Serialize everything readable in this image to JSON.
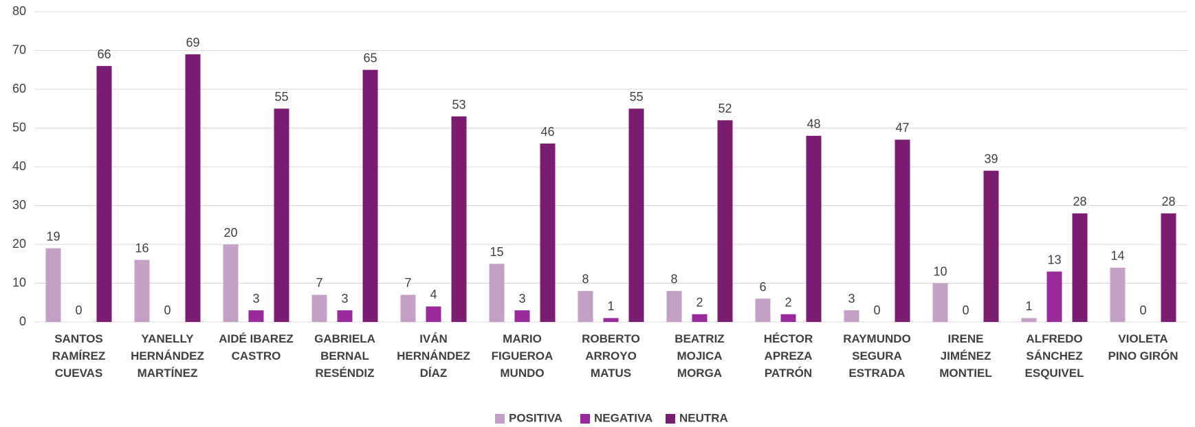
{
  "chart_data": {
    "type": "bar",
    "categories": [
      "SANTOS RAMÍREZ CUEVAS",
      "YANELLY HERNÁNDEZ MARTÍNEZ",
      "AIDÉ IBAREZ CASTRO",
      "GABRIELA BERNAL RESÉNDIZ",
      "IVÁN HERNÁNDEZ DÍAZ",
      "MARIO FIGUEROA MUNDO",
      "ROBERTO ARROYO MATUS",
      "BEATRIZ MOJICA MORGA",
      "HÉCTOR APREZA PATRÓN",
      "RAYMUNDO SEGURA ESTRADA",
      "IRENE JIMÉNEZ MONTIEL",
      "ALFREDO SÁNCHEZ ESQUIVEL",
      "VIOLETA PINO GIRÓN"
    ],
    "series": [
      {
        "name": "POSITIVA",
        "color": "#c4a0c6",
        "values": [
          19,
          16,
          20,
          7,
          7,
          15,
          8,
          8,
          6,
          3,
          10,
          1,
          14
        ]
      },
      {
        "name": "NEGATIVA",
        "color": "#9a2a9c",
        "values": [
          0,
          0,
          3,
          3,
          4,
          3,
          1,
          2,
          2,
          0,
          0,
          13,
          0
        ]
      },
      {
        "name": "NEUTRA",
        "color": "#7a1d72",
        "values": [
          66,
          69,
          55,
          65,
          53,
          46,
          55,
          52,
          48,
          47,
          39,
          28,
          28
        ]
      }
    ],
    "ylim": [
      0,
      80
    ],
    "yticks": [
      0,
      10,
      20,
      30,
      40,
      50,
      60,
      70,
      80
    ],
    "grid": true,
    "legend": "bottom"
  }
}
